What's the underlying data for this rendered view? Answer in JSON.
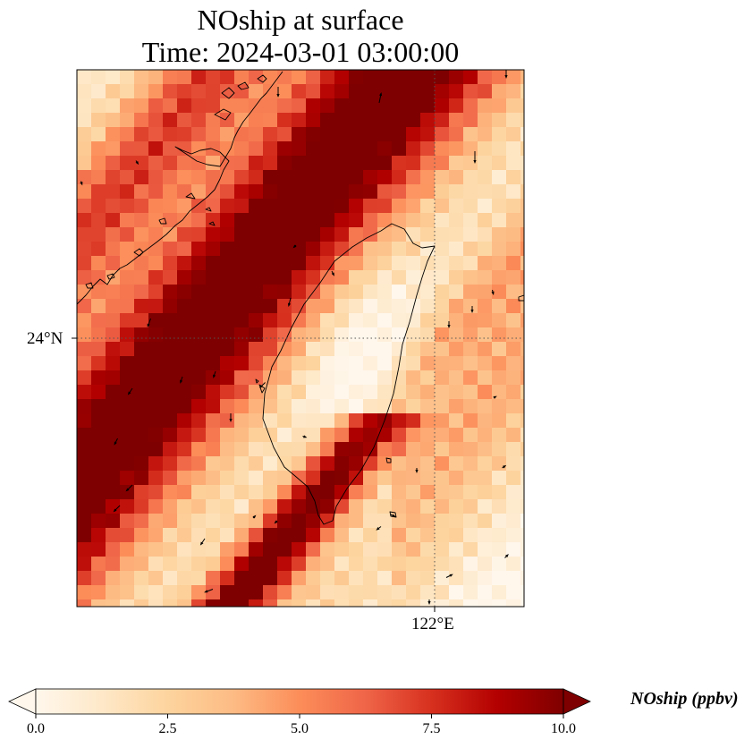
{
  "title": {
    "line1": "NOship at surface",
    "line2": "Time: 2024-03-01 03:00:00"
  },
  "map": {
    "variable": "NOship",
    "level": "surface",
    "gridlines": {
      "style": "dotted",
      "color": "#555555"
    },
    "lat_ticks": [
      "24°N"
    ],
    "lon_ticks": [
      "122°E"
    ],
    "coastline_color": "#000000",
    "wind_vector_color": "#000000"
  },
  "colorbar": {
    "label": "NOship (ppbv)",
    "colormap": "OrRd",
    "extend": "both",
    "vmin": 0.0,
    "vmax": 10.0,
    "ticks": [
      "0.0",
      "2.5",
      "5.0",
      "7.5",
      "10.0"
    ],
    "colors": [
      "#fff7ec",
      "#fee8c8",
      "#fdd49e",
      "#fdbb84",
      "#fc8d59",
      "#ef6548",
      "#d7301f",
      "#b30000",
      "#7f0000"
    ]
  }
}
